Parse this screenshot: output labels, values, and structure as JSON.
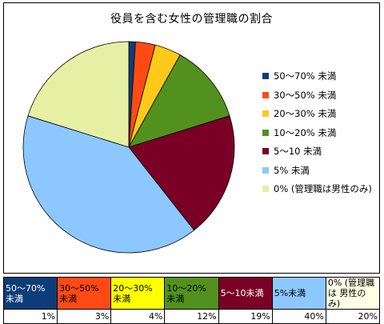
{
  "chart_data": {
    "type": "pie",
    "title": "役員を含む女性の管理職の割合",
    "legend_position": "right",
    "slices": [
      {
        "label": "50～70% 未満",
        "value": 1,
        "color": "#0d3d78"
      },
      {
        "label": "30～50% 未満",
        "value": 3,
        "color": "#ff4a14"
      },
      {
        "label": "20～30% 未満",
        "value": 4,
        "color": "#ffc91a"
      },
      {
        "label": "10～20% 未満",
        "value": 12,
        "color": "#52911e"
      },
      {
        "label": "5～10 未満",
        "value": 19,
        "color": "#7a0026"
      },
      {
        "label": "5% 未満",
        "value": 40,
        "color": "#8cc8ff"
      },
      {
        "label": "0% (管理職は男性のみ)",
        "value": 20,
        "color": "#e6f0a5"
      }
    ]
  },
  "table": {
    "headers": [
      {
        "text": "50～70% 未満",
        "bg": "#0d3d78",
        "fg": "#ffffff"
      },
      {
        "text": "30～50% 未満",
        "bg": "#ff4a14",
        "fg": "#000000"
      },
      {
        "text": "20～30% 未満",
        "bg": "#ffff00",
        "fg": "#000000"
      },
      {
        "text": "10～20% 未満",
        "bg": "#52911e",
        "fg": "#000000"
      },
      {
        "text": "5～10未満",
        "bg": "#7a0026",
        "fg": "#ffffff"
      },
      {
        "text": "5%未満",
        "bg": "#8cc8ff",
        "fg": "#000000"
      },
      {
        "text": "0% (管理職は 男性のみ)",
        "bg": "#ffffe6",
        "fg": "#000000"
      }
    ],
    "values": [
      "1%",
      "3%",
      "4%",
      "12%",
      "19%",
      "40%",
      "20%"
    ]
  }
}
